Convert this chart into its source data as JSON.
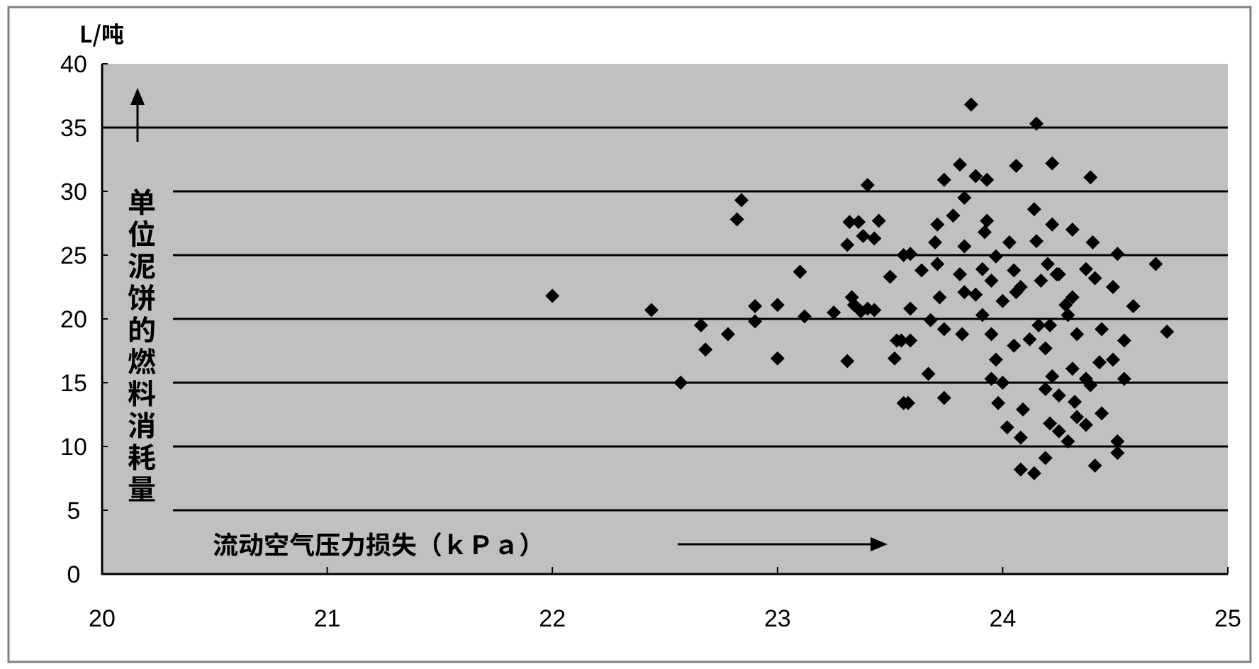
{
  "chart_data": {
    "type": "scatter",
    "xlabel": "流动空气压力损失（ｋＰａ）",
    "ylabel": "单位泥饼的燃料消耗量",
    "annotations": [
      "L/吨"
    ],
    "xlim": [
      20,
      25
    ],
    "ylim": [
      0,
      40
    ],
    "xticks": [
      20,
      21,
      22,
      23,
      24,
      25
    ],
    "yticks": [
      0,
      5,
      10,
      15,
      20,
      25,
      30,
      35,
      40
    ],
    "grid": "y",
    "marker": "diamond",
    "series": [
      {
        "color": "#000000",
        "x": [
          22.0,
          22.44,
          22.57,
          22.66,
          22.68,
          22.78,
          22.82,
          22.84,
          22.9,
          22.9,
          23.0,
          23.0,
          23.1,
          23.12,
          23.25,
          23.31,
          23.31,
          23.32,
          23.4,
          23.38,
          23.43,
          23.45,
          23.33,
          23.34,
          23.37,
          23.43,
          23.5,
          23.53,
          23.52,
          23.56,
          23.56,
          23.86,
          24.15,
          23.81,
          23.74,
          23.88,
          23.93,
          24.06,
          24.22,
          24.39,
          23.83,
          23.78,
          23.93,
          23.92,
          24.14,
          24.22,
          24.31,
          23.71,
          23.7,
          23.83,
          24.03,
          24.15,
          24.4,
          24.51,
          24.68,
          23.59,
          23.36,
          23.71,
          23.81,
          23.91,
          23.97,
          24.05,
          24.2,
          24.25,
          24.37,
          24.41,
          23.64,
          23.59,
          23.72,
          23.68,
          23.74,
          23.82,
          23.91,
          23.95,
          23.55,
          23.59,
          23.67,
          23.58,
          23.74,
          23.97,
          23.95,
          24.0,
          23.98,
          24.02,
          24.09,
          24.08,
          24.08,
          24.14,
          24.19,
          24.05,
          24.12,
          24.19,
          24.21,
          24.16,
          24.22,
          24.19,
          24.25,
          24.21,
          24.25,
          24.29,
          24.33,
          24.37,
          24.32,
          24.31,
          24.29,
          24.33,
          24.31,
          24.37,
          24.39,
          24.44,
          24.43,
          24.49,
          24.54,
          24.54,
          24.44,
          24.51,
          24.51,
          24.41,
          24.58,
          24.73,
          24.49,
          24.06,
          23.83,
          23.4,
          24.0,
          24.08,
          24.24,
          24.28,
          24.17,
          23.95,
          23.88
        ],
        "values": [
          21.8,
          20.7,
          15.0,
          19.5,
          17.6,
          18.8,
          27.8,
          29.3,
          19.8,
          21.0,
          21.1,
          16.9,
          23.7,
          20.2,
          20.5,
          16.7,
          25.8,
          27.6,
          30.5,
          26.5,
          26.3,
          27.7,
          21.7,
          21.1,
          20.6,
          20.7,
          23.3,
          18.3,
          16.9,
          25.0,
          13.4,
          36.8,
          35.3,
          32.1,
          30.9,
          31.2,
          30.9,
          32.0,
          32.2,
          31.1,
          29.5,
          28.1,
          27.7,
          26.8,
          28.6,
          27.4,
          27.0,
          27.4,
          26.0,
          25.7,
          26.0,
          26.1,
          26.0,
          25.1,
          24.3,
          25.1,
          27.6,
          24.3,
          23.5,
          23.9,
          24.9,
          23.8,
          24.3,
          23.5,
          23.9,
          23.2,
          23.8,
          20.8,
          21.7,
          19.9,
          19.2,
          18.8,
          20.3,
          18.8,
          18.3,
          18.3,
          15.7,
          13.4,
          13.8,
          16.8,
          15.3,
          15.0,
          13.4,
          11.5,
          12.9,
          10.7,
          8.2,
          7.9,
          9.1,
          17.9,
          18.4,
          17.7,
          19.5,
          19.5,
          15.5,
          14.5,
          14.0,
          11.8,
          11.2,
          10.4,
          12.3,
          11.7,
          13.5,
          21.7,
          20.3,
          18.8,
          16.1,
          15.3,
          14.8,
          19.2,
          16.6,
          16.8,
          18.3,
          15.3,
          12.6,
          10.4,
          9.5,
          8.5,
          21.0,
          19.0,
          22.5,
          22.1,
          22.1,
          20.8,
          21.4,
          22.5,
          23.5,
          21.1,
          23.0,
          23.0,
          21.9
        ]
      }
    ]
  }
}
